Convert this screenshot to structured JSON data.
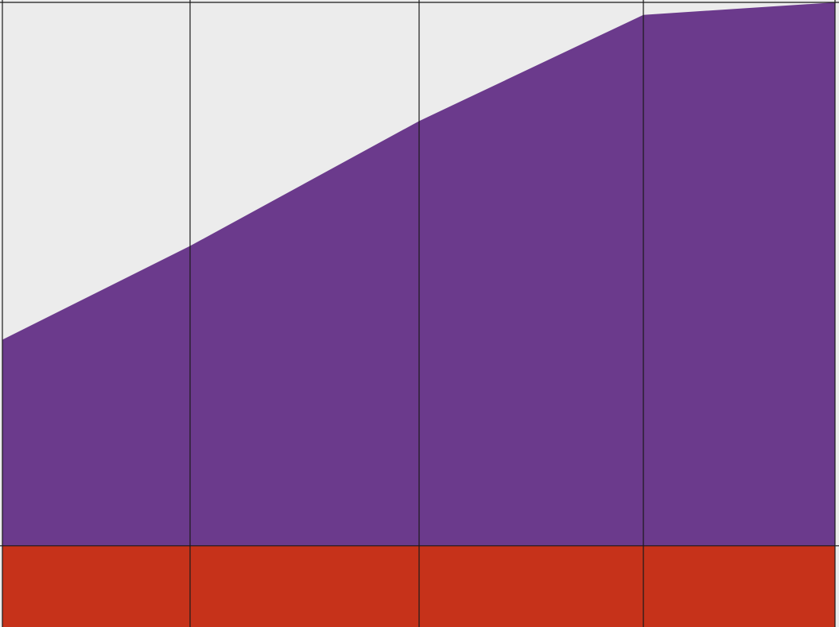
{
  "chart_data": {
    "type": "area",
    "title": "",
    "xlabel": "",
    "ylabel": "",
    "x": [
      0,
      1,
      2,
      3,
      4
    ],
    "xlim": [
      0,
      4
    ],
    "ylim": [
      0,
      1
    ],
    "grid": true,
    "legend": "none",
    "series": [
      {
        "values": [
          0.13,
          0.13,
          0.13,
          0.13,
          0.13
        ]
      },
      {
        "values": [
          0.33,
          0.48,
          0.68,
          0.85,
          0.87
        ]
      }
    ]
  },
  "colors": {
    "background": "#ececec",
    "series": [
      "#c6321a",
      "#6b3a8c"
    ],
    "grid": "#1a1a1a"
  }
}
